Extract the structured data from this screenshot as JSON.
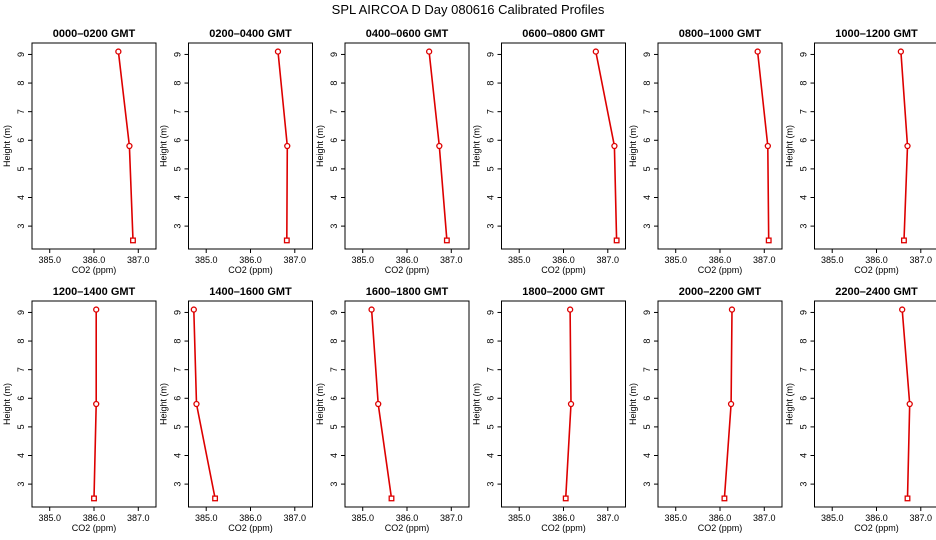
{
  "figure_title": "SPL AIRCOA D  Day 080616  Calibrated Profiles",
  "colors": {
    "series": "#dd0000",
    "axes": "#000000",
    "background": "#ffffff"
  },
  "chart_data": [
    {
      "type": "line",
      "title": "0000–0200 GMT",
      "xlabel": "CO2 (ppm)",
      "ylabel": "Height (m)",
      "xlim": [
        384.6,
        387.4
      ],
      "ylim": [
        2.2,
        9.4
      ],
      "xticks": [
        "385.0",
        "386.0",
        "387.0"
      ],
      "yticks": [
        "3",
        "4",
        "5",
        "6",
        "7",
        "8",
        "9"
      ],
      "points": [
        {
          "x": 386.55,
          "y": 9.1
        },
        {
          "x": 386.8,
          "y": 5.8
        },
        {
          "x": 386.88,
          "y": 2.5
        }
      ]
    },
    {
      "type": "line",
      "title": "0200–0400 GMT",
      "xlabel": "CO2 (ppm)",
      "ylabel": "Height (m)",
      "xlim": [
        384.6,
        387.4
      ],
      "ylim": [
        2.2,
        9.4
      ],
      "xticks": [
        "385.0",
        "386.0",
        "387.0"
      ],
      "yticks": [
        "3",
        "4",
        "5",
        "6",
        "7",
        "8",
        "9"
      ],
      "points": [
        {
          "x": 386.62,
          "y": 9.1
        },
        {
          "x": 386.83,
          "y": 5.8
        },
        {
          "x": 386.82,
          "y": 2.5
        }
      ]
    },
    {
      "type": "line",
      "title": "0400–0600 GMT",
      "xlabel": "CO2 (ppm)",
      "ylabel": "Height (m)",
      "xlim": [
        384.6,
        387.4
      ],
      "ylim": [
        2.2,
        9.4
      ],
      "xticks": [
        "385.0",
        "386.0",
        "387.0"
      ],
      "yticks": [
        "3",
        "4",
        "5",
        "6",
        "7",
        "8",
        "9"
      ],
      "points": [
        {
          "x": 386.5,
          "y": 9.1
        },
        {
          "x": 386.73,
          "y": 5.8
        },
        {
          "x": 386.9,
          "y": 2.5
        }
      ]
    },
    {
      "type": "line",
      "title": "0600–0800 GMT",
      "xlabel": "CO2 (ppm)",
      "ylabel": "Height (m)",
      "xlim": [
        384.6,
        387.4
      ],
      "ylim": [
        2.2,
        9.4
      ],
      "xticks": [
        "385.0",
        "386.0",
        "387.0"
      ],
      "yticks": [
        "3",
        "4",
        "5",
        "6",
        "7",
        "8",
        "9"
      ],
      "points": [
        {
          "x": 386.73,
          "y": 9.1
        },
        {
          "x": 387.15,
          "y": 5.8
        },
        {
          "x": 387.2,
          "y": 2.5
        }
      ]
    },
    {
      "type": "line",
      "title": "0800–1000 GMT",
      "xlabel": "CO2 (ppm)",
      "ylabel": "Height (m)",
      "xlim": [
        384.6,
        387.4
      ],
      "ylim": [
        2.2,
        9.4
      ],
      "xticks": [
        "385.0",
        "386.0",
        "387.0"
      ],
      "yticks": [
        "3",
        "4",
        "5",
        "6",
        "7",
        "8",
        "9"
      ],
      "points": [
        {
          "x": 386.85,
          "y": 9.1
        },
        {
          "x": 387.08,
          "y": 5.8
        },
        {
          "x": 387.1,
          "y": 2.5
        }
      ]
    },
    {
      "type": "line",
      "title": "1000–1200 GMT",
      "xlabel": "CO2 (ppm)",
      "ylabel": "Height (m)",
      "xlim": [
        384.6,
        387.4
      ],
      "ylim": [
        2.2,
        9.4
      ],
      "xticks": [
        "385.0",
        "386.0",
        "387.0"
      ],
      "yticks": [
        "3",
        "4",
        "5",
        "6",
        "7",
        "8",
        "9"
      ],
      "points": [
        {
          "x": 386.55,
          "y": 9.1
        },
        {
          "x": 386.7,
          "y": 5.8
        },
        {
          "x": 386.62,
          "y": 2.5
        }
      ]
    },
    {
      "type": "line",
      "title": "1200–1400 GMT",
      "xlabel": "CO2 (ppm)",
      "ylabel": "Height (m)",
      "xlim": [
        384.6,
        387.4
      ],
      "ylim": [
        2.2,
        9.4
      ],
      "xticks": [
        "385.0",
        "386.0",
        "387.0"
      ],
      "yticks": [
        "3",
        "4",
        "5",
        "6",
        "7",
        "8",
        "9"
      ],
      "points": [
        {
          "x": 386.05,
          "y": 9.1
        },
        {
          "x": 386.05,
          "y": 5.8
        },
        {
          "x": 386.0,
          "y": 2.5
        }
      ]
    },
    {
      "type": "line",
      "title": "1400–1600 GMT",
      "xlabel": "CO2 (ppm)",
      "ylabel": "Height (m)",
      "xlim": [
        384.6,
        387.4
      ],
      "ylim": [
        2.2,
        9.4
      ],
      "xticks": [
        "385.0",
        "386.0",
        "387.0"
      ],
      "yticks": [
        "3",
        "4",
        "5",
        "6",
        "7",
        "8",
        "9"
      ],
      "points": [
        {
          "x": 384.72,
          "y": 9.1
        },
        {
          "x": 384.78,
          "y": 5.8
        },
        {
          "x": 385.2,
          "y": 2.5
        }
      ]
    },
    {
      "type": "line",
      "title": "1600–1800 GMT",
      "xlabel": "CO2 (ppm)",
      "ylabel": "Height (m)",
      "xlim": [
        384.6,
        387.4
      ],
      "ylim": [
        2.2,
        9.4
      ],
      "xticks": [
        "385.0",
        "386.0",
        "387.0"
      ],
      "yticks": [
        "3",
        "4",
        "5",
        "6",
        "7",
        "8",
        "9"
      ],
      "points": [
        {
          "x": 385.2,
          "y": 9.1
        },
        {
          "x": 385.35,
          "y": 5.8
        },
        {
          "x": 385.65,
          "y": 2.5
        }
      ]
    },
    {
      "type": "line",
      "title": "1800–2000 GMT",
      "xlabel": "CO2 (ppm)",
      "ylabel": "Height (m)",
      "xlim": [
        384.6,
        387.4
      ],
      "ylim": [
        2.2,
        9.4
      ],
      "xticks": [
        "385.0",
        "386.0",
        "387.0"
      ],
      "yticks": [
        "3",
        "4",
        "5",
        "6",
        "7",
        "8",
        "9"
      ],
      "points": [
        {
          "x": 386.15,
          "y": 9.1
        },
        {
          "x": 386.17,
          "y": 5.8
        },
        {
          "x": 386.05,
          "y": 2.5
        }
      ]
    },
    {
      "type": "line",
      "title": "2000–2200 GMT",
      "xlabel": "CO2 (ppm)",
      "ylabel": "Height (m)",
      "xlim": [
        384.6,
        387.4
      ],
      "ylim": [
        2.2,
        9.4
      ],
      "xticks": [
        "385.0",
        "386.0",
        "387.0"
      ],
      "yticks": [
        "3",
        "4",
        "5",
        "6",
        "7",
        "8",
        "9"
      ],
      "points": [
        {
          "x": 386.27,
          "y": 9.1
        },
        {
          "x": 386.25,
          "y": 5.8
        },
        {
          "x": 386.1,
          "y": 2.5
        }
      ]
    },
    {
      "type": "line",
      "title": "2200–2400 GMT",
      "xlabel": "CO2 (ppm)",
      "ylabel": "Height (m)",
      "xlim": [
        384.6,
        387.4
      ],
      "ylim": [
        2.2,
        9.4
      ],
      "xticks": [
        "385.0",
        "386.0",
        "387.0"
      ],
      "yticks": [
        "3",
        "4",
        "5",
        "6",
        "7",
        "8",
        "9"
      ],
      "points": [
        {
          "x": 386.58,
          "y": 9.1
        },
        {
          "x": 386.75,
          "y": 5.8
        },
        {
          "x": 386.7,
          "y": 2.5
        }
      ]
    }
  ]
}
